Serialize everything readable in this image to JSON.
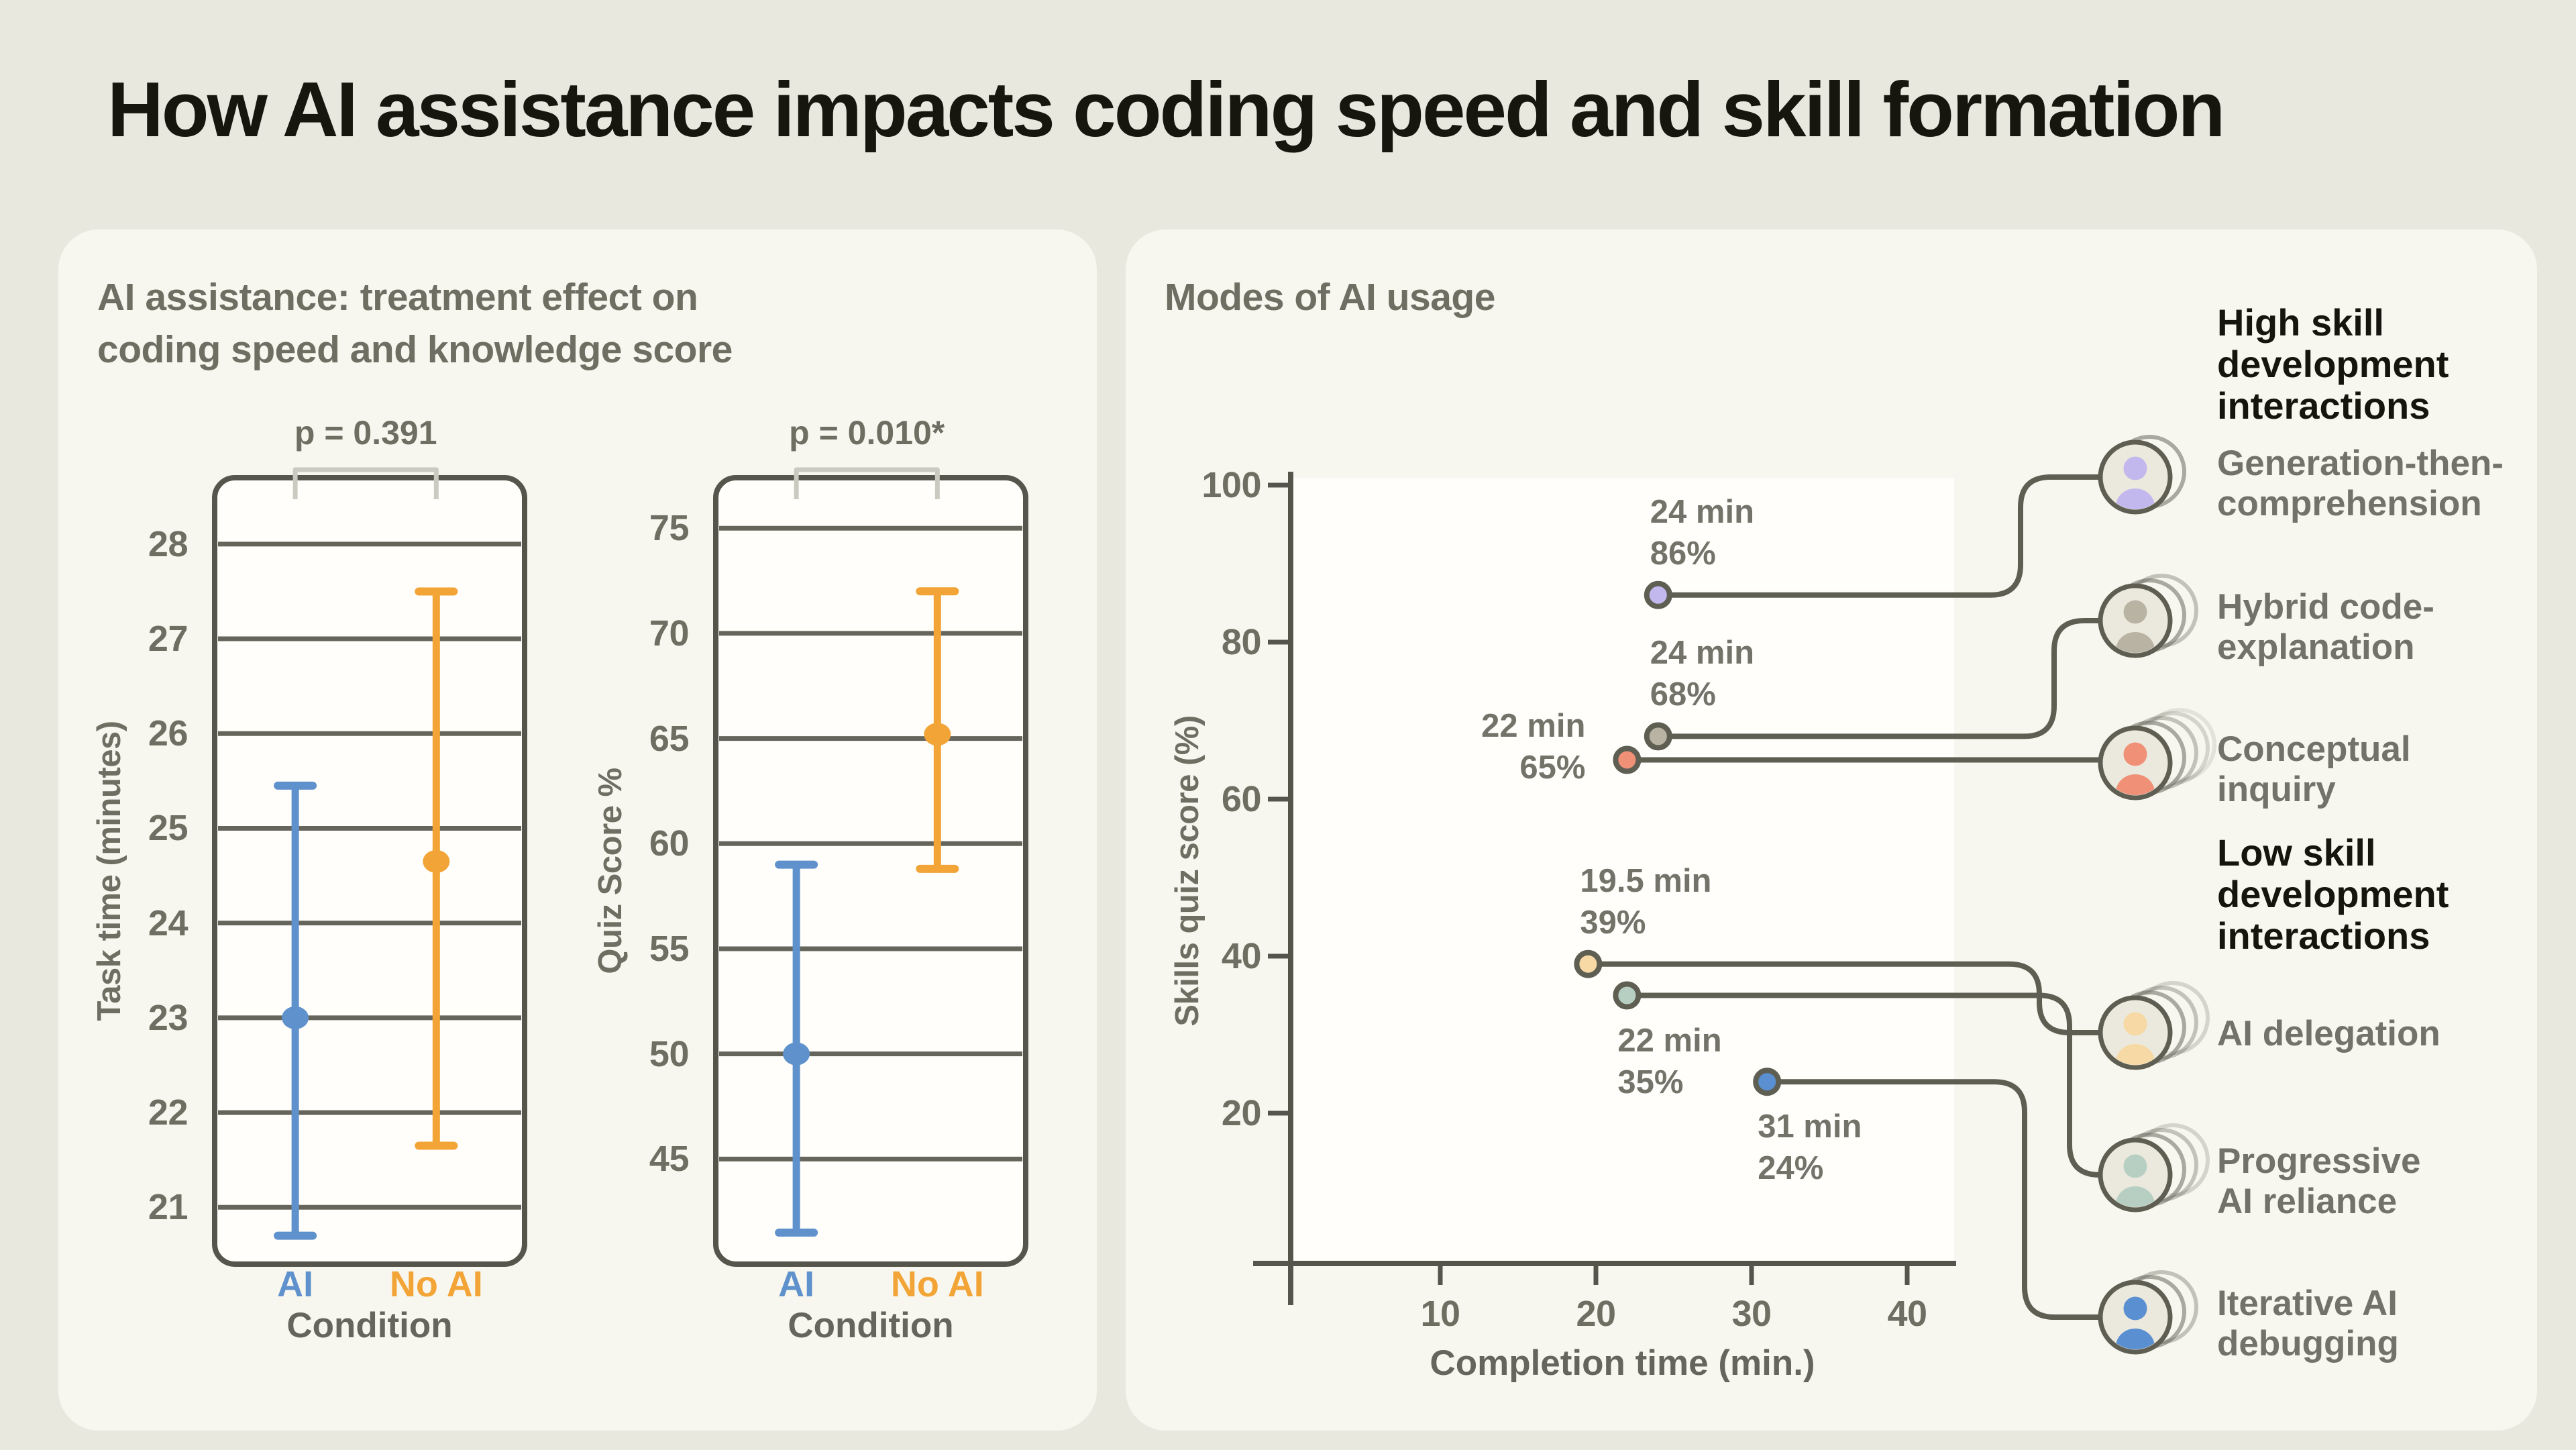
{
  "page": {
    "title": "How AI assistance impacts coding speed and skill formation",
    "background": "#e9e8de",
    "card_background": "#f8f7ef",
    "text_dark": "#16160f",
    "text_gray": "#6f6e63",
    "axis_color": "#56554b",
    "bracket_color": "#cbcac0",
    "connector_color": "#5f5e53"
  },
  "left_panel": {
    "title_line1": "AI assistance: treatment effect on",
    "title_line2": "coding speed and knowledge score"
  },
  "right_panel": {
    "title": "Modes of AI usage",
    "groups": [
      {
        "id": "high",
        "header_lines": [
          "High skill",
          "development",
          "interactions"
        ]
      },
      {
        "id": "low",
        "header_lines": [
          "Low skill",
          "development",
          "interactions"
        ]
      }
    ],
    "modes": [
      {
        "name": "generation-then-comprehension",
        "label_lines": [
          "Generation-then-",
          "comprehension"
        ],
        "color": "#c3b8ee",
        "stack": 2,
        "group": "high"
      },
      {
        "name": "hybrid-code-explanation",
        "label_lines": [
          "Hybrid code-",
          "explanation"
        ],
        "color": "#b9b3a4",
        "stack": 3,
        "group": "high"
      },
      {
        "name": "conceptual-inquiry",
        "label_lines": [
          "Conceptual",
          "inquiry"
        ],
        "color": "#ef9077",
        "stack": 5,
        "group": "high"
      },
      {
        "name": "ai-delegation",
        "label_lines": [
          "AI delegation"
        ],
        "color": "#f6d9a4",
        "stack": 4,
        "group": "low"
      },
      {
        "name": "progressive-ai-reliance",
        "label_lines": [
          "Progressive",
          "AI reliance"
        ],
        "color": "#b7cfc3",
        "stack": 4,
        "group": "low"
      },
      {
        "name": "iterative-ai-debugging",
        "label_lines": [
          "Iterative AI",
          "debugging"
        ],
        "color": "#5a8fd1",
        "stack": 3,
        "group": "low"
      }
    ]
  },
  "chart_data": [
    {
      "type": "errorbar",
      "ylabel": "Task time (minutes)",
      "xlabel": "Condition",
      "p_value": "p = 0.391",
      "categories": [
        "AI",
        "No AI"
      ],
      "series": [
        {
          "name": "AI",
          "color": "#5f92cc",
          "mean": 23.0,
          "ci_low": 20.7,
          "ci_high": 25.45
        },
        {
          "name": "No AI",
          "color": "#f2a437",
          "mean": 24.65,
          "ci_low": 21.65,
          "ci_high": 27.5
        }
      ],
      "yticks": [
        21,
        22,
        23,
        24,
        25,
        26,
        27,
        28
      ],
      "ylim": [
        20.4,
        28.7
      ],
      "grid": true
    },
    {
      "type": "errorbar",
      "ylabel": "Quiz Score %",
      "xlabel": "Condition",
      "p_value": "p = 0.010*",
      "categories": [
        "AI",
        "No AI"
      ],
      "series": [
        {
          "name": "AI",
          "color": "#5f92cc",
          "mean": 50.0,
          "ci_low": 41.5,
          "ci_high": 59.0
        },
        {
          "name": "No AI",
          "color": "#f2a437",
          "mean": 65.2,
          "ci_low": 58.8,
          "ci_high": 72.0
        }
      ],
      "yticks": [
        45,
        50,
        55,
        60,
        65,
        70,
        75
      ],
      "ylim": [
        40.0,
        77.4
      ],
      "grid": true
    },
    {
      "type": "scatter",
      "xlabel": "Completion time (min.)",
      "ylabel": "Skills quiz score (%)",
      "xticks": [
        10,
        20,
        30,
        40
      ],
      "yticks": [
        20,
        40,
        60,
        80,
        100
      ],
      "xlim": [
        0.4,
        43.0
      ],
      "ylim": [
        1.0,
        101.0
      ],
      "grid": false,
      "points": [
        {
          "mode": "Generation-then-comprehension",
          "x": 24,
          "y": 86,
          "time_label": "24 min",
          "score_label": "86%",
          "label_side": "above"
        },
        {
          "mode": "Hybrid code-explanation",
          "x": 24,
          "y": 68,
          "time_label": "24 min",
          "score_label": "68%",
          "label_side": "above"
        },
        {
          "mode": "Conceptual inquiry",
          "x": 22,
          "y": 65,
          "time_label": "22 min",
          "score_label": "65%",
          "label_side": "left"
        },
        {
          "mode": "AI delegation",
          "x": 19.5,
          "y": 39,
          "time_label": "19.5 min",
          "score_label": "39%",
          "label_side": "above"
        },
        {
          "mode": "Progressive AI reliance",
          "x": 22,
          "y": 35,
          "time_label": "22 min",
          "score_label": "35%",
          "label_side": "below"
        },
        {
          "mode": "Iterative AI debugging",
          "x": 31,
          "y": 24,
          "time_label": "31 min",
          "score_label": "24%",
          "label_side": "below"
        }
      ]
    }
  ]
}
